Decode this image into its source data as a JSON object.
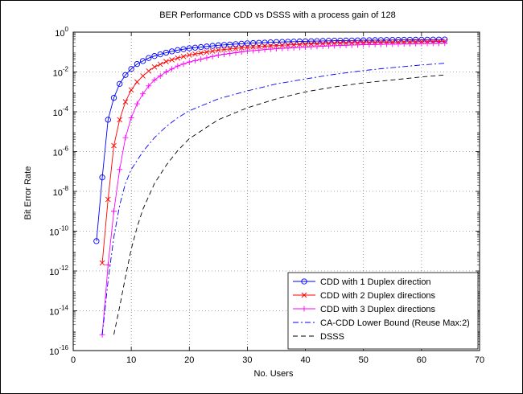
{
  "chart_data": {
    "type": "line",
    "title": "BER Performance CDD vs DSSS with a process gain of 128",
    "xlabel": "No. Users",
    "ylabel": "Bit Error Rate",
    "xlim": [
      0,
      70
    ],
    "ylim_log10": [
      -16,
      0
    ],
    "yscale": "log",
    "grid": true,
    "legend_position": "bottom-right",
    "xticks": [
      "0",
      "10",
      "20",
      "30",
      "40",
      "50",
      "60",
      "70"
    ],
    "yticks": [
      {
        "base": "10",
        "exp": "0"
      },
      {
        "base": "10",
        "exp": "-2"
      },
      {
        "base": "10",
        "exp": "-4"
      },
      {
        "base": "10",
        "exp": "-6"
      },
      {
        "base": "10",
        "exp": "-8"
      },
      {
        "base": "10",
        "exp": "-10"
      },
      {
        "base": "10",
        "exp": "-12"
      },
      {
        "base": "10",
        "exp": "-14"
      },
      {
        "base": "10",
        "exp": "-16"
      }
    ],
    "series": [
      {
        "name": "CDD with 1 Duplex direction",
        "color": "#0000ff",
        "style": "solid",
        "marker": "circle",
        "points_log10": [
          [
            4,
            -10.5
          ],
          [
            5,
            -7.3
          ],
          [
            6,
            -4.4
          ],
          [
            7,
            -3.3
          ],
          [
            8,
            -2.6
          ],
          [
            9,
            -2.15
          ],
          [
            10,
            -1.85
          ],
          [
            11,
            -1.6
          ],
          [
            12,
            -1.45
          ],
          [
            13,
            -1.3
          ],
          [
            14,
            -1.2
          ],
          [
            16,
            -1.03
          ],
          [
            18,
            -0.9
          ],
          [
            20,
            -0.81
          ],
          [
            25,
            -0.66
          ],
          [
            30,
            -0.56
          ],
          [
            35,
            -0.5
          ],
          [
            40,
            -0.46
          ],
          [
            45,
            -0.43
          ],
          [
            50,
            -0.41
          ],
          [
            55,
            -0.39
          ],
          [
            60,
            -0.38
          ],
          [
            64,
            -0.37
          ]
        ]
      },
      {
        "name": "CDD with 2 Duplex directions",
        "color": "#ff0000",
        "style": "solid",
        "marker": "x",
        "points_log10": [
          [
            5,
            -11.6
          ],
          [
            6,
            -8.4
          ],
          [
            7,
            -5.7
          ],
          [
            8,
            -4.4
          ],
          [
            9,
            -3.5
          ],
          [
            10,
            -2.9
          ],
          [
            11,
            -2.5
          ],
          [
            12,
            -2.2
          ],
          [
            13,
            -1.95
          ],
          [
            14,
            -1.75
          ],
          [
            16,
            -1.48
          ],
          [
            18,
            -1.3
          ],
          [
            20,
            -1.15
          ],
          [
            25,
            -0.9
          ],
          [
            30,
            -0.76
          ],
          [
            35,
            -0.67
          ],
          [
            40,
            -0.6
          ],
          [
            45,
            -0.55
          ],
          [
            50,
            -0.52
          ],
          [
            55,
            -0.5
          ],
          [
            60,
            -0.48
          ],
          [
            64,
            -0.46
          ]
        ]
      },
      {
        "name": "CDD with 3 Duplex directions",
        "color": "#ff00ff",
        "style": "solid",
        "marker": "plus",
        "points_log10": [
          [
            5,
            -15.2
          ],
          [
            6,
            -11.7
          ],
          [
            7,
            -9.0
          ],
          [
            8,
            -6.9
          ],
          [
            9,
            -5.3
          ],
          [
            10,
            -4.3
          ],
          [
            11,
            -3.6
          ],
          [
            12,
            -3.1
          ],
          [
            13,
            -2.7
          ],
          [
            14,
            -2.4
          ],
          [
            16,
            -2.0
          ],
          [
            18,
            -1.7
          ],
          [
            20,
            -1.5
          ],
          [
            25,
            -1.15
          ],
          [
            30,
            -0.95
          ],
          [
            35,
            -0.83
          ],
          [
            40,
            -0.75
          ],
          [
            45,
            -0.68
          ],
          [
            50,
            -0.63
          ],
          [
            55,
            -0.6
          ],
          [
            60,
            -0.57
          ],
          [
            64,
            -0.55
          ]
        ]
      },
      {
        "name": "CA-CDD Lower Bound (Reuse Max:2)",
        "color": "#0000ff",
        "style": "dashdot",
        "marker": "none",
        "points_log10": [
          [
            5,
            -15.2
          ],
          [
            6,
            -12.5
          ],
          [
            7,
            -10.3
          ],
          [
            8,
            -8.7
          ],
          [
            9,
            -7.6
          ],
          [
            10,
            -6.9
          ],
          [
            12,
            -6.0
          ],
          [
            14,
            -5.3
          ],
          [
            16,
            -4.75
          ],
          [
            18,
            -4.3
          ],
          [
            20,
            -3.95
          ],
          [
            25,
            -3.35
          ],
          [
            30,
            -2.95
          ],
          [
            35,
            -2.6
          ],
          [
            40,
            -2.35
          ],
          [
            45,
            -2.12
          ],
          [
            50,
            -1.93
          ],
          [
            55,
            -1.78
          ],
          [
            60,
            -1.65
          ],
          [
            64,
            -1.56
          ]
        ]
      },
      {
        "name": "DSSS",
        "color": "#000000",
        "style": "dashed",
        "marker": "none",
        "points_log10": [
          [
            7,
            -15.2
          ],
          [
            8,
            -13.8
          ],
          [
            9,
            -12.3
          ],
          [
            10,
            -10.9
          ],
          [
            11,
            -9.8
          ],
          [
            12,
            -8.9
          ],
          [
            14,
            -7.6
          ],
          [
            16,
            -6.7
          ],
          [
            18,
            -5.95
          ],
          [
            20,
            -5.35
          ],
          [
            25,
            -4.4
          ],
          [
            30,
            -3.8
          ],
          [
            35,
            -3.35
          ],
          [
            40,
            -3.0
          ],
          [
            45,
            -2.75
          ],
          [
            50,
            -2.55
          ],
          [
            55,
            -2.4
          ],
          [
            60,
            -2.25
          ],
          [
            64,
            -2.15
          ]
        ]
      }
    ]
  }
}
